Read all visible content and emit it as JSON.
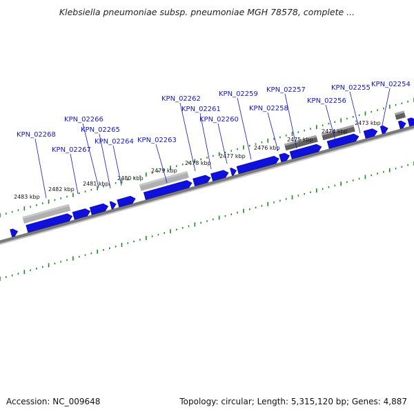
{
  "title": "Klebsiella pneumoniae subsp. pneumoniae MGH 78578, complete ...",
  "footer": {
    "accession_text": "Accession: NC_009648",
    "summary_text": "Topology: circular; Length: 5,315,120 bp; Genes: 4,887"
  },
  "colors": {
    "gene": "#1010dd",
    "rna_light": "#b0b0b0",
    "rna_dark": "#606060",
    "tick": "#1a8a1a",
    "backbone": "#7a7a7a",
    "label": "#1414c8"
  },
  "kbp_labels": [
    "2483 kbp",
    "2482 kbp",
    "2481 kbp",
    "2480 kbp",
    "2479 kbp",
    "2478 kbp",
    "2477 kbp",
    "2476 kbp",
    "2475 kbp",
    "2474 kbp",
    "2473 kbp"
  ],
  "gene_labels": [
    "KPN_02268",
    "KPN_02267",
    "KPN_02266",
    "KPN_02265",
    "KPN_02264",
    "KPN_02263",
    "KPN_02262",
    "KPN_02261",
    "KPN_02260",
    "KPN_02259",
    "KPN_02258",
    "KPN_02257",
    "KPN_02256",
    "KPN_02255",
    "KPN_02254"
  ]
}
